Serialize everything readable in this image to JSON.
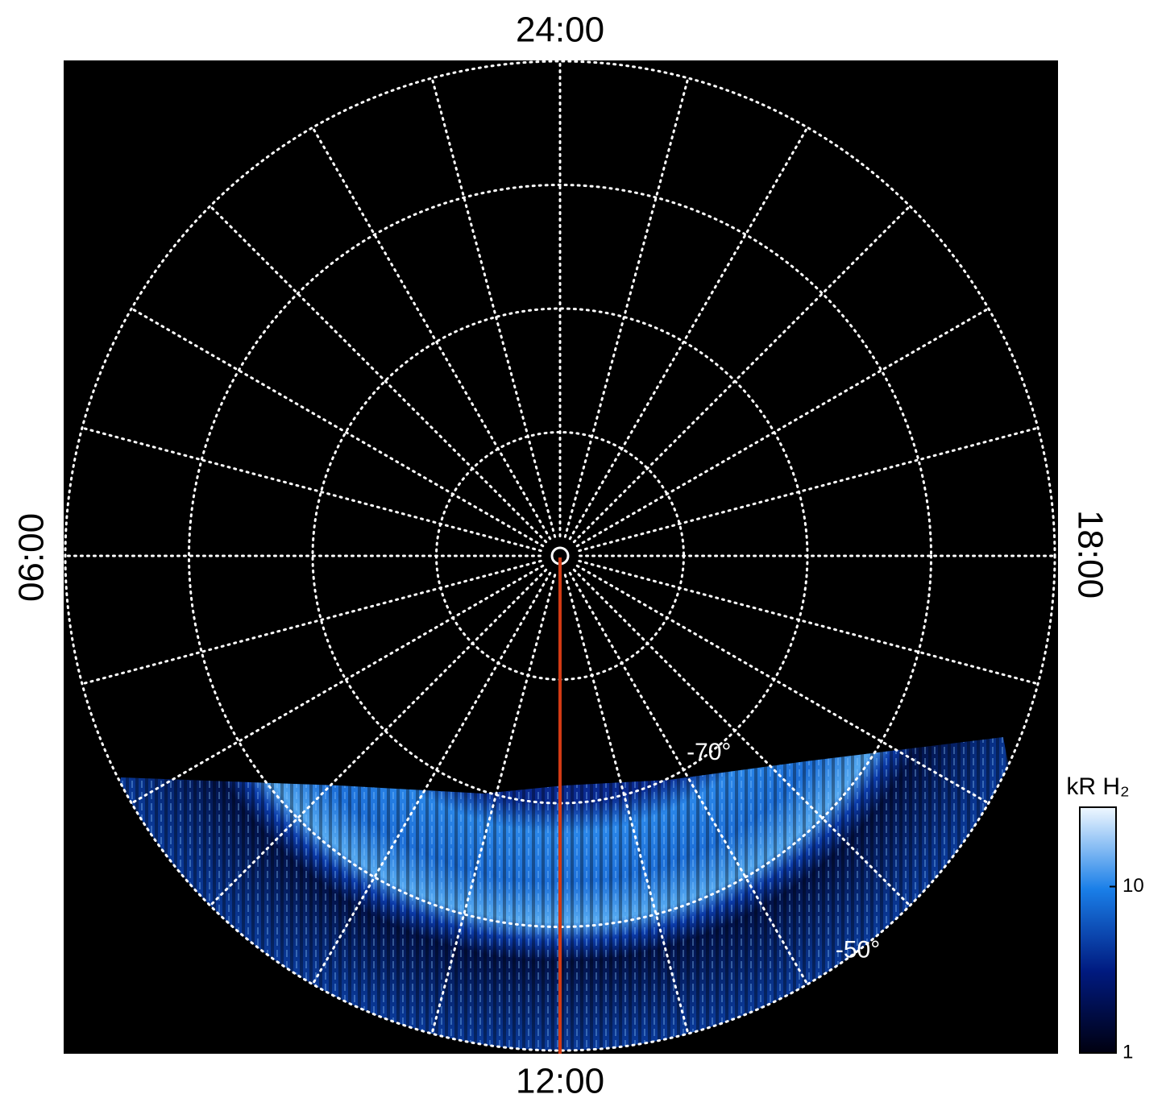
{
  "chart_data": {
    "type": "polar-image",
    "local_time_labels": [
      "24:00",
      "06:00",
      "12:00",
      "18:00"
    ],
    "latitude_lim": [
      -90,
      -50
    ],
    "latitude_rings": [
      -80,
      -70,
      -60,
      -50
    ],
    "ring_labels": [
      {
        "value": -70,
        "label": "-70°"
      },
      {
        "value": -50,
        "label": "-50°"
      }
    ],
    "meridians": 24,
    "grid": true,
    "colorbar": {
      "label": "kR H₂",
      "scale": "log",
      "lim": [
        1,
        30
      ],
      "ticks": [
        1,
        10
      ],
      "colors": [
        "#000010",
        "#001a80",
        "#1a7fe8",
        "#f0f8ff"
      ]
    }
  }
}
